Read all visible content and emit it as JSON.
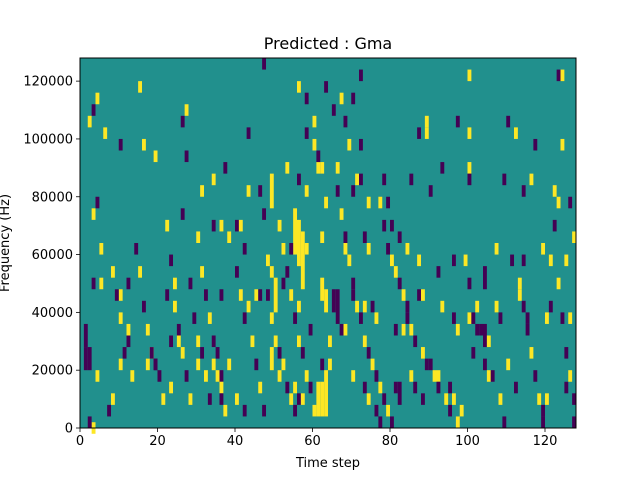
{
  "chart_data": {
    "type": "heatmap",
    "title": "Predicted : Gma",
    "xlabel": "Time step",
    "ylabel": "Frequency (Hz)",
    "xlim": [
      0,
      128
    ],
    "ylim": [
      0,
      128000
    ],
    "x_ticks": [
      0,
      20,
      40,
      60,
      80,
      100,
      120
    ],
    "y_ticks": [
      0,
      20000,
      40000,
      60000,
      80000,
      100000,
      120000
    ],
    "x_tick_labels": [
      "0",
      "20",
      "40",
      "60",
      "80",
      "100",
      "120"
    ],
    "y_tick_labels": [
      "0",
      "20000",
      "40000",
      "60000",
      "80000",
      "100000",
      "120000"
    ],
    "colormap": "viridis",
    "colors": {
      "background": "#21908d",
      "high": "#fde725",
      "low": "#440154"
    },
    "cell_height_hz": 4000,
    "cell_width_steps": 1,
    "bands": [
      {
        "t": 61,
        "f0": 4000,
        "f1": 16000,
        "value": 1
      },
      {
        "t": 62,
        "f0": 4000,
        "f1": 16000,
        "value": 1
      },
      {
        "t": 63,
        "f0": 4000,
        "f1": 20000,
        "value": 1
      },
      {
        "t": 49,
        "f0": 20000,
        "f1": 28000,
        "value": 1
      },
      {
        "t": 50,
        "f0": 40000,
        "f1": 52000,
        "value": 1
      },
      {
        "t": 49,
        "f0": 76000,
        "f1": 88000,
        "value": 1
      },
      {
        "t": 55,
        "f0": 60000,
        "f1": 76000,
        "value": 1
      },
      {
        "t": 56,
        "f0": 56000,
        "f1": 72000,
        "value": 1
      },
      {
        "t": 57,
        "f0": 48000,
        "f1": 68000,
        "value": 1
      },
      {
        "t": 62,
        "f0": 44000,
        "f1": 52000,
        "value": 1
      },
      {
        "t": 63,
        "f0": 40000,
        "f1": 48000,
        "value": 1
      },
      {
        "t": 61,
        "f0": 88000,
        "f1": 92000,
        "value": 1
      },
      {
        "t": 62,
        "f0": 88000,
        "f1": 92000,
        "value": 1
      },
      {
        "t": 65,
        "f0": 40000,
        "f1": 48000,
        "value": 0
      },
      {
        "t": 66,
        "f0": 36000,
        "f1": 48000,
        "value": 0
      },
      {
        "t": 1,
        "f0": 20000,
        "f1": 28000,
        "value": 0
      },
      {
        "t": 2,
        "f0": 20000,
        "f1": 28000,
        "value": 0
      },
      {
        "t": 82,
        "f0": 8000,
        "f1": 16000,
        "value": 0
      },
      {
        "t": 104,
        "f0": 48000,
        "f1": 56000,
        "value": 0
      },
      {
        "t": 104,
        "f0": 28000,
        "f1": 36000,
        "value": 0
      }
    ],
    "cells": [
      [
        3,
        2,
        1
      ],
      [
        1,
        32,
        0
      ],
      [
        5,
        64,
        1
      ],
      [
        15,
        120,
        1
      ],
      [
        47,
        128,
        0
      ],
      [
        72,
        124,
        0
      ],
      [
        100,
        124,
        1
      ],
      [
        124,
        124,
        1
      ],
      [
        123,
        124,
        0
      ],
      [
        4,
        116,
        1
      ],
      [
        3,
        112,
        0
      ],
      [
        2,
        108,
        1
      ],
      [
        6,
        104,
        1
      ],
      [
        26,
        108,
        0
      ],
      [
        27,
        112,
        1
      ],
      [
        43,
        104,
        0
      ],
      [
        58,
        104,
        0
      ],
      [
        60,
        108,
        1
      ],
      [
        65,
        112,
        0
      ],
      [
        67,
        116,
        1
      ],
      [
        68,
        108,
        0
      ],
      [
        87,
        104,
        0
      ],
      [
        89,
        108,
        1
      ],
      [
        89,
        104,
        1
      ],
      [
        97,
        108,
        0
      ],
      [
        100,
        104,
        1
      ],
      [
        110,
        108,
        0
      ],
      [
        112,
        104,
        1
      ],
      [
        117,
        100,
        0
      ],
      [
        124,
        100,
        1
      ],
      [
        10,
        100,
        0
      ],
      [
        16,
        100,
        1
      ],
      [
        19,
        96,
        1
      ],
      [
        27,
        96,
        0
      ],
      [
        37,
        92,
        0
      ],
      [
        43,
        84,
        1
      ],
      [
        34,
        88,
        1
      ],
      [
        31,
        84,
        1
      ],
      [
        46,
        84,
        0
      ],
      [
        53,
        92,
        1
      ],
      [
        56,
        88,
        0
      ],
      [
        58,
        84,
        1
      ],
      [
        63,
        80,
        1
      ],
      [
        70,
        84,
        0
      ],
      [
        71,
        88,
        1
      ],
      [
        72,
        88,
        0
      ],
      [
        74,
        80,
        1
      ],
      [
        78,
        88,
        0
      ],
      [
        79,
        80,
        0
      ],
      [
        85,
        88,
        0
      ],
      [
        90,
        84,
        0
      ],
      [
        93,
        92,
        0
      ],
      [
        100,
        92,
        1
      ],
      [
        100,
        88,
        0
      ],
      [
        109,
        88,
        0
      ],
      [
        114,
        84,
        0
      ],
      [
        116,
        88,
        1
      ],
      [
        122,
        84,
        1
      ],
      [
        123,
        80,
        1
      ],
      [
        126,
        80,
        0
      ],
      [
        4,
        80,
        0
      ],
      [
        3,
        76,
        1
      ],
      [
        26,
        76,
        0
      ],
      [
        34,
        72,
        0
      ],
      [
        36,
        72,
        1
      ],
      [
        38,
        68,
        1
      ],
      [
        40,
        72,
        0
      ],
      [
        41,
        72,
        1
      ],
      [
        30,
        68,
        1
      ],
      [
        47,
        76,
        0
      ],
      [
        42,
        64,
        0
      ],
      [
        54,
        64,
        0
      ],
      [
        58,
        64,
        1
      ],
      [
        62,
        68,
        1
      ],
      [
        68,
        64,
        1
      ],
      [
        73,
        68,
        0
      ],
      [
        74,
        64,
        1
      ],
      [
        80,
        72,
        0
      ],
      [
        82,
        68,
        0
      ],
      [
        84,
        64,
        1
      ],
      [
        87,
        60,
        1
      ],
      [
        92,
        56,
        0
      ],
      [
        96,
        60,
        0
      ],
      [
        107,
        64,
        1
      ],
      [
        114,
        60,
        0
      ],
      [
        119,
        64,
        1
      ],
      [
        121,
        60,
        1
      ],
      [
        125,
        60,
        1
      ],
      [
        127,
        68,
        1
      ],
      [
        3,
        52,
        0
      ],
      [
        5,
        52,
        1
      ],
      [
        10,
        48,
        1
      ],
      [
        12,
        52,
        0
      ],
      [
        22,
        48,
        0
      ],
      [
        24,
        52,
        1
      ],
      [
        28,
        52,
        0
      ],
      [
        36,
        48,
        0
      ],
      [
        43,
        44,
        1
      ],
      [
        45,
        48,
        1
      ],
      [
        46,
        48,
        0
      ],
      [
        49,
        56,
        1
      ],
      [
        52,
        52,
        0
      ],
      [
        56,
        44,
        1
      ],
      [
        59,
        36,
        0
      ],
      [
        64,
        32,
        1
      ],
      [
        67,
        36,
        0
      ],
      [
        68,
        36,
        1
      ],
      [
        70,
        48,
        0
      ],
      [
        73,
        44,
        1
      ],
      [
        75,
        44,
        0
      ],
      [
        76,
        40,
        1
      ],
      [
        81,
        36,
        0
      ],
      [
        83,
        36,
        1
      ],
      [
        84,
        44,
        0
      ],
      [
        87,
        48,
        0
      ],
      [
        88,
        48,
        1
      ],
      [
        93,
        44,
        1
      ],
      [
        96,
        40,
        0
      ],
      [
        97,
        36,
        1
      ],
      [
        100,
        40,
        1
      ],
      [
        101,
        40,
        0
      ],
      [
        102,
        36,
        0
      ],
      [
        107,
        44,
        1
      ],
      [
        108,
        40,
        0
      ],
      [
        113,
        48,
        1
      ],
      [
        114,
        44,
        0
      ],
      [
        115,
        40,
        0
      ],
      [
        120,
        40,
        1
      ],
      [
        121,
        44,
        0
      ],
      [
        124,
        40,
        0
      ],
      [
        126,
        40,
        1
      ],
      [
        1,
        36,
        0
      ],
      [
        12,
        36,
        1
      ],
      [
        12,
        32,
        0
      ],
      [
        10,
        24,
        1
      ],
      [
        17,
        24,
        1
      ],
      [
        18,
        28,
        1
      ],
      [
        19,
        24,
        0
      ],
      [
        23,
        32,
        0
      ],
      [
        25,
        32,
        1
      ],
      [
        27,
        20,
        0
      ],
      [
        30,
        24,
        1
      ],
      [
        35,
        28,
        0
      ],
      [
        34,
        24,
        1
      ],
      [
        36,
        20,
        0
      ],
      [
        38,
        24,
        1
      ],
      [
        36,
        16,
        1
      ],
      [
        36,
        12,
        0
      ],
      [
        37,
        8,
        1
      ],
      [
        40,
        12,
        1
      ],
      [
        42,
        8,
        0
      ],
      [
        51,
        20,
        1
      ],
      [
        55,
        16,
        1
      ],
      [
        56,
        12,
        0
      ],
      [
        57,
        12,
        1
      ],
      [
        62,
        24,
        0
      ],
      [
        64,
        24,
        1
      ],
      [
        70,
        20,
        1
      ],
      [
        73,
        16,
        0
      ],
      [
        74,
        12,
        1
      ],
      [
        76,
        8,
        0
      ],
      [
        77,
        4,
        0
      ],
      [
        81,
        16,
        0
      ],
      [
        85,
        20,
        1
      ],
      [
        86,
        16,
        0
      ],
      [
        88,
        12,
        0
      ],
      [
        90,
        24,
        0
      ],
      [
        92,
        20,
        1
      ],
      [
        95,
        16,
        0
      ],
      [
        96,
        12,
        1
      ],
      [
        98,
        8,
        1
      ],
      [
        101,
        28,
        0
      ],
      [
        104,
        24,
        0
      ],
      [
        105,
        20,
        1
      ],
      [
        110,
        24,
        1
      ],
      [
        112,
        16,
        0
      ],
      [
        119,
        8,
        0
      ],
      [
        120,
        12,
        1
      ],
      [
        125,
        16,
        0
      ],
      [
        127,
        12,
        0
      ],
      [
        28,
        12,
        1
      ],
      [
        7,
        8,
        0
      ],
      [
        8,
        12,
        1
      ],
      [
        23,
        16,
        1
      ],
      [
        19,
        24,
        0
      ],
      [
        2,
        4,
        0
      ],
      [
        4,
        20,
        1
      ]
    ],
    "scatter_cells": [
      [
        56,
        120,
        1
      ],
      [
        58,
        116,
        0
      ],
      [
        60,
        100,
        1
      ],
      [
        61,
        96,
        0
      ],
      [
        63,
        120,
        0
      ],
      [
        66,
        92,
        1
      ],
      [
        69,
        100,
        1
      ],
      [
        70,
        116,
        0
      ],
      [
        72,
        100,
        0
      ],
      [
        77,
        80,
        1
      ],
      [
        78,
        72,
        0
      ],
      [
        79,
        64,
        0
      ],
      [
        80,
        60,
        1
      ],
      [
        81,
        56,
        1
      ],
      [
        82,
        52,
        0
      ],
      [
        83,
        48,
        1
      ],
      [
        84,
        40,
        0
      ],
      [
        85,
        36,
        1
      ],
      [
        86,
        32,
        0
      ],
      [
        88,
        28,
        1
      ],
      [
        89,
        24,
        0
      ],
      [
        91,
        20,
        1
      ],
      [
        92,
        16,
        0
      ],
      [
        94,
        12,
        1
      ],
      [
        95,
        8,
        0
      ],
      [
        97,
        4,
        1
      ],
      [
        66,
        84,
        0
      ],
      [
        67,
        76,
        1
      ],
      [
        68,
        68,
        0
      ],
      [
        69,
        60,
        1
      ],
      [
        70,
        52,
        0
      ],
      [
        71,
        44,
        1
      ],
      [
        72,
        40,
        0
      ],
      [
        73,
        32,
        1
      ],
      [
        74,
        28,
        0
      ],
      [
        75,
        24,
        1
      ],
      [
        76,
        20,
        0
      ],
      [
        77,
        16,
        1
      ],
      [
        78,
        12,
        0
      ],
      [
        79,
        8,
        1
      ],
      [
        80,
        4,
        0
      ],
      [
        51,
        72,
        1
      ],
      [
        52,
        64,
        1
      ],
      [
        53,
        56,
        0
      ],
      [
        54,
        48,
        1
      ],
      [
        55,
        40,
        0
      ],
      [
        56,
        32,
        1
      ],
      [
        57,
        28,
        0
      ],
      [
        58,
        20,
        1
      ],
      [
        59,
        16,
        0
      ],
      [
        60,
        8,
        1
      ],
      [
        48,
        60,
        1
      ],
      [
        48,
        48,
        0
      ],
      [
        49,
        40,
        1
      ],
      [
        50,
        32,
        1
      ],
      [
        51,
        28,
        0
      ],
      [
        52,
        24,
        1
      ],
      [
        53,
        16,
        0
      ],
      [
        54,
        12,
        1
      ],
      [
        55,
        8,
        0
      ],
      [
        31,
        56,
        1
      ],
      [
        32,
        48,
        0
      ],
      [
        33,
        40,
        1
      ],
      [
        34,
        32,
        0
      ],
      [
        35,
        20,
        1
      ],
      [
        29,
        40,
        0
      ],
      [
        30,
        32,
        1
      ],
      [
        31,
        28,
        0
      ],
      [
        32,
        20,
        1
      ],
      [
        33,
        12,
        0
      ],
      [
        22,
        72,
        1
      ],
      [
        23,
        60,
        0
      ],
      [
        24,
        44,
        1
      ],
      [
        25,
        36,
        0
      ],
      [
        26,
        28,
        1
      ],
      [
        20,
        20,
        0
      ],
      [
        21,
        12,
        1
      ],
      [
        14,
        64,
        0
      ],
      [
        15,
        56,
        1
      ],
      [
        16,
        44,
        0
      ],
      [
        17,
        36,
        1
      ],
      [
        18,
        28,
        0
      ],
      [
        8,
        56,
        1
      ],
      [
        9,
        48,
        0
      ],
      [
        10,
        40,
        1
      ],
      [
        11,
        28,
        0
      ],
      [
        13,
        20,
        1
      ],
      [
        40,
        56,
        0
      ],
      [
        41,
        48,
        1
      ],
      [
        42,
        40,
        0
      ],
      [
        44,
        32,
        1
      ],
      [
        45,
        24,
        0
      ],
      [
        46,
        16,
        1
      ],
      [
        47,
        8,
        0
      ],
      [
        99,
        60,
        1
      ],
      [
        100,
        52,
        0
      ],
      [
        102,
        44,
        1
      ],
      [
        103,
        36,
        0
      ],
      [
        105,
        32,
        1
      ],
      [
        106,
        20,
        0
      ],
      [
        108,
        12,
        1
      ],
      [
        109,
        4,
        0
      ],
      [
        111,
        60,
        0
      ],
      [
        113,
        52,
        1
      ],
      [
        115,
        36,
        0
      ],
      [
        116,
        28,
        1
      ],
      [
        117,
        20,
        0
      ],
      [
        118,
        12,
        1
      ],
      [
        119,
        4,
        0
      ],
      [
        122,
        72,
        0
      ],
      [
        123,
        52,
        1
      ],
      [
        125,
        28,
        0
      ],
      [
        126,
        20,
        1
      ],
      [
        127,
        4,
        0
      ]
    ]
  }
}
